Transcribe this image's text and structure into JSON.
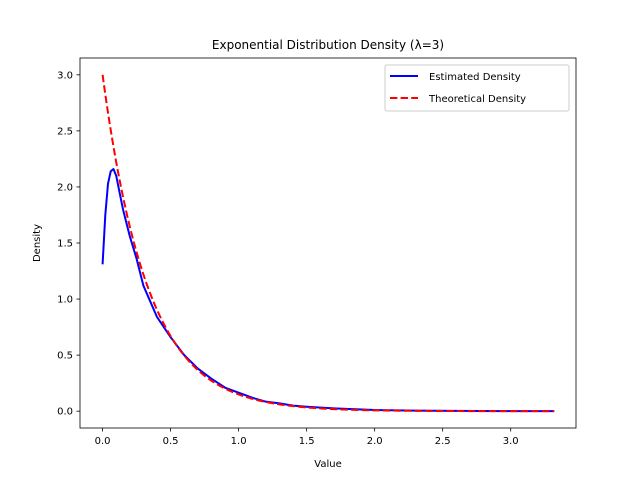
{
  "chart_data": {
    "type": "line",
    "title": "Exponential Distribution Density (λ=3)",
    "xlabel": "Value",
    "ylabel": "Density",
    "xlim": [
      -0.166,
      3.48
    ],
    "ylim": [
      -0.15,
      3.15
    ],
    "xticks": [
      0.0,
      0.5,
      1.0,
      1.5,
      2.0,
      2.5,
      3.0
    ],
    "xtick_labels": [
      "0.0",
      "0.5",
      "1.0",
      "1.5",
      "2.0",
      "2.5",
      "3.0"
    ],
    "yticks": [
      0.0,
      0.5,
      1.0,
      1.5,
      2.0,
      2.5,
      3.0
    ],
    "ytick_labels": [
      "0.0",
      "0.5",
      "1.0",
      "1.5",
      "2.0",
      "2.5",
      "3.0"
    ],
    "grid": false,
    "legend_position": "top-right",
    "series": [
      {
        "name": "Estimated Density",
        "color": "#0000ff",
        "style": "solid",
        "x": [
          0.0,
          0.02,
          0.04,
          0.06,
          0.08,
          0.1,
          0.12,
          0.15,
          0.2,
          0.25,
          0.3,
          0.35,
          0.4,
          0.5,
          0.6,
          0.7,
          0.8,
          0.9,
          1.0,
          1.1,
          1.2,
          1.3,
          1.4,
          1.5,
          1.7,
          2.0,
          2.3,
          2.6,
          3.0,
          3.32
        ],
        "y": [
          1.31,
          1.75,
          2.03,
          2.14,
          2.16,
          2.1,
          1.98,
          1.8,
          1.56,
          1.36,
          1.12,
          0.98,
          0.84,
          0.66,
          0.5,
          0.38,
          0.29,
          0.21,
          0.165,
          0.12,
          0.085,
          0.07,
          0.05,
          0.04,
          0.025,
          0.01,
          0.005,
          0.003,
          0.001,
          0.0
        ]
      },
      {
        "name": "Theoretical Density",
        "color": "#ff0000",
        "style": "dashed",
        "function": "3*exp(-3*x)",
        "x_range": [
          0.0,
          3.32
        ]
      }
    ]
  }
}
